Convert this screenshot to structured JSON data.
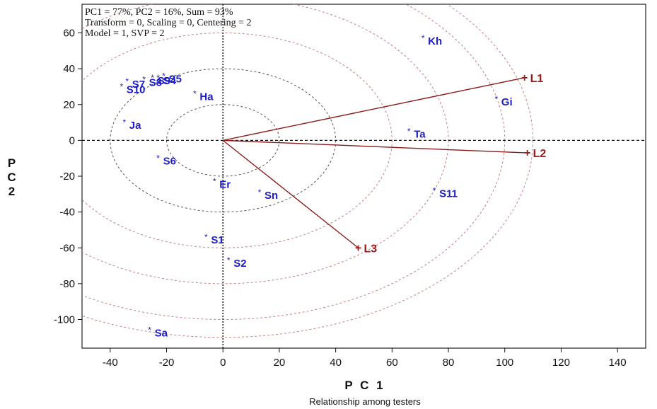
{
  "chart_data": {
    "type": "scatter",
    "subtype": "biplot",
    "caption": "Relationship among testers",
    "xlabel": "P C 1",
    "ylabel": "P C 2",
    "xlim": [
      -50,
      150
    ],
    "ylim": [
      -116,
      76
    ],
    "xticks": [
      -40,
      -20,
      0,
      20,
      40,
      60,
      80,
      100,
      120,
      140
    ],
    "yticks": [
      -100,
      -80,
      -60,
      -40,
      -20,
      0,
      20,
      40,
      60
    ],
    "info_lines": [
      "PC1 = 77%, PC2 = 16%, Sum = 93%",
      "Transform = 0, Scaling = 0, Centering = 2",
      "Model = 1, SVP = 2"
    ],
    "circle_radii": [
      20,
      40,
      60,
      80,
      100,
      110
    ],
    "series": [
      {
        "name": "testers",
        "color": "#1c1cc8",
        "points": [
          {
            "label": "Kh",
            "x": 71,
            "y": 57
          },
          {
            "label": "Gi",
            "x": 97,
            "y": 23
          },
          {
            "label": "Ta",
            "x": 66,
            "y": 5
          },
          {
            "label": "S11",
            "x": 75,
            "y": -28
          },
          {
            "label": "Ha",
            "x": -10,
            "y": 26
          },
          {
            "label": "Ja",
            "x": -35,
            "y": 10
          },
          {
            "label": "S6",
            "x": -23,
            "y": -10
          },
          {
            "label": "Er",
            "x": -3,
            "y": -23
          },
          {
            "label": "Sn",
            "x": 13,
            "y": -29
          },
          {
            "label": "S1",
            "x": -6,
            "y": -54
          },
          {
            "label": "S2",
            "x": 2,
            "y": -67
          },
          {
            "label": "Sa",
            "x": -26,
            "y": -106
          },
          {
            "label": "S10",
            "x": -36,
            "y": 30
          },
          {
            "label": "S7",
            "x": -34,
            "y": 33
          },
          {
            "label": "S8",
            "x": -28,
            "y": 34
          },
          {
            "label": "S9",
            "x": -25,
            "y": 35
          },
          {
            "label": "S4",
            "x": -23,
            "y": 35
          },
          {
            "label": "S5",
            "x": -21,
            "y": 36
          }
        ]
      },
      {
        "name": "lines",
        "color": "#a01818",
        "points": [
          {
            "label": "L1",
            "x": 107,
            "y": 35
          },
          {
            "label": "L2",
            "x": 108,
            "y": -7
          },
          {
            "label": "L3",
            "x": 48,
            "y": -60
          }
        ]
      }
    ],
    "grid": false,
    "legend": "none"
  }
}
